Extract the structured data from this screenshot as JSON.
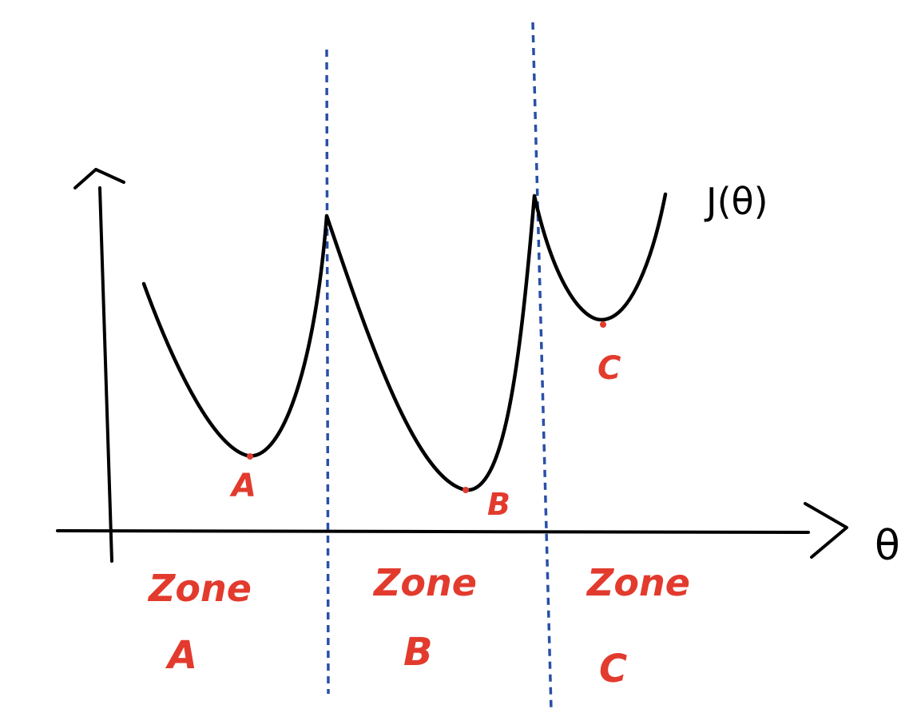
{
  "function_label": "J(θ)",
  "axis_label": "θ",
  "minima": [
    {
      "id": "a",
      "label": "A"
    },
    {
      "id": "b",
      "label": "B"
    },
    {
      "id": "c",
      "label": "C"
    }
  ],
  "zones": [
    {
      "id": "a",
      "word": "Zone",
      "letter": "A"
    },
    {
      "id": "b",
      "word": "Zone",
      "letter": "B"
    },
    {
      "id": "c",
      "word": "Zone",
      "letter": "C"
    }
  ],
  "colors": {
    "curve": "#000000",
    "axes": "#000000",
    "labels": "#e23b2e",
    "divider": "#2a4fa8"
  }
}
